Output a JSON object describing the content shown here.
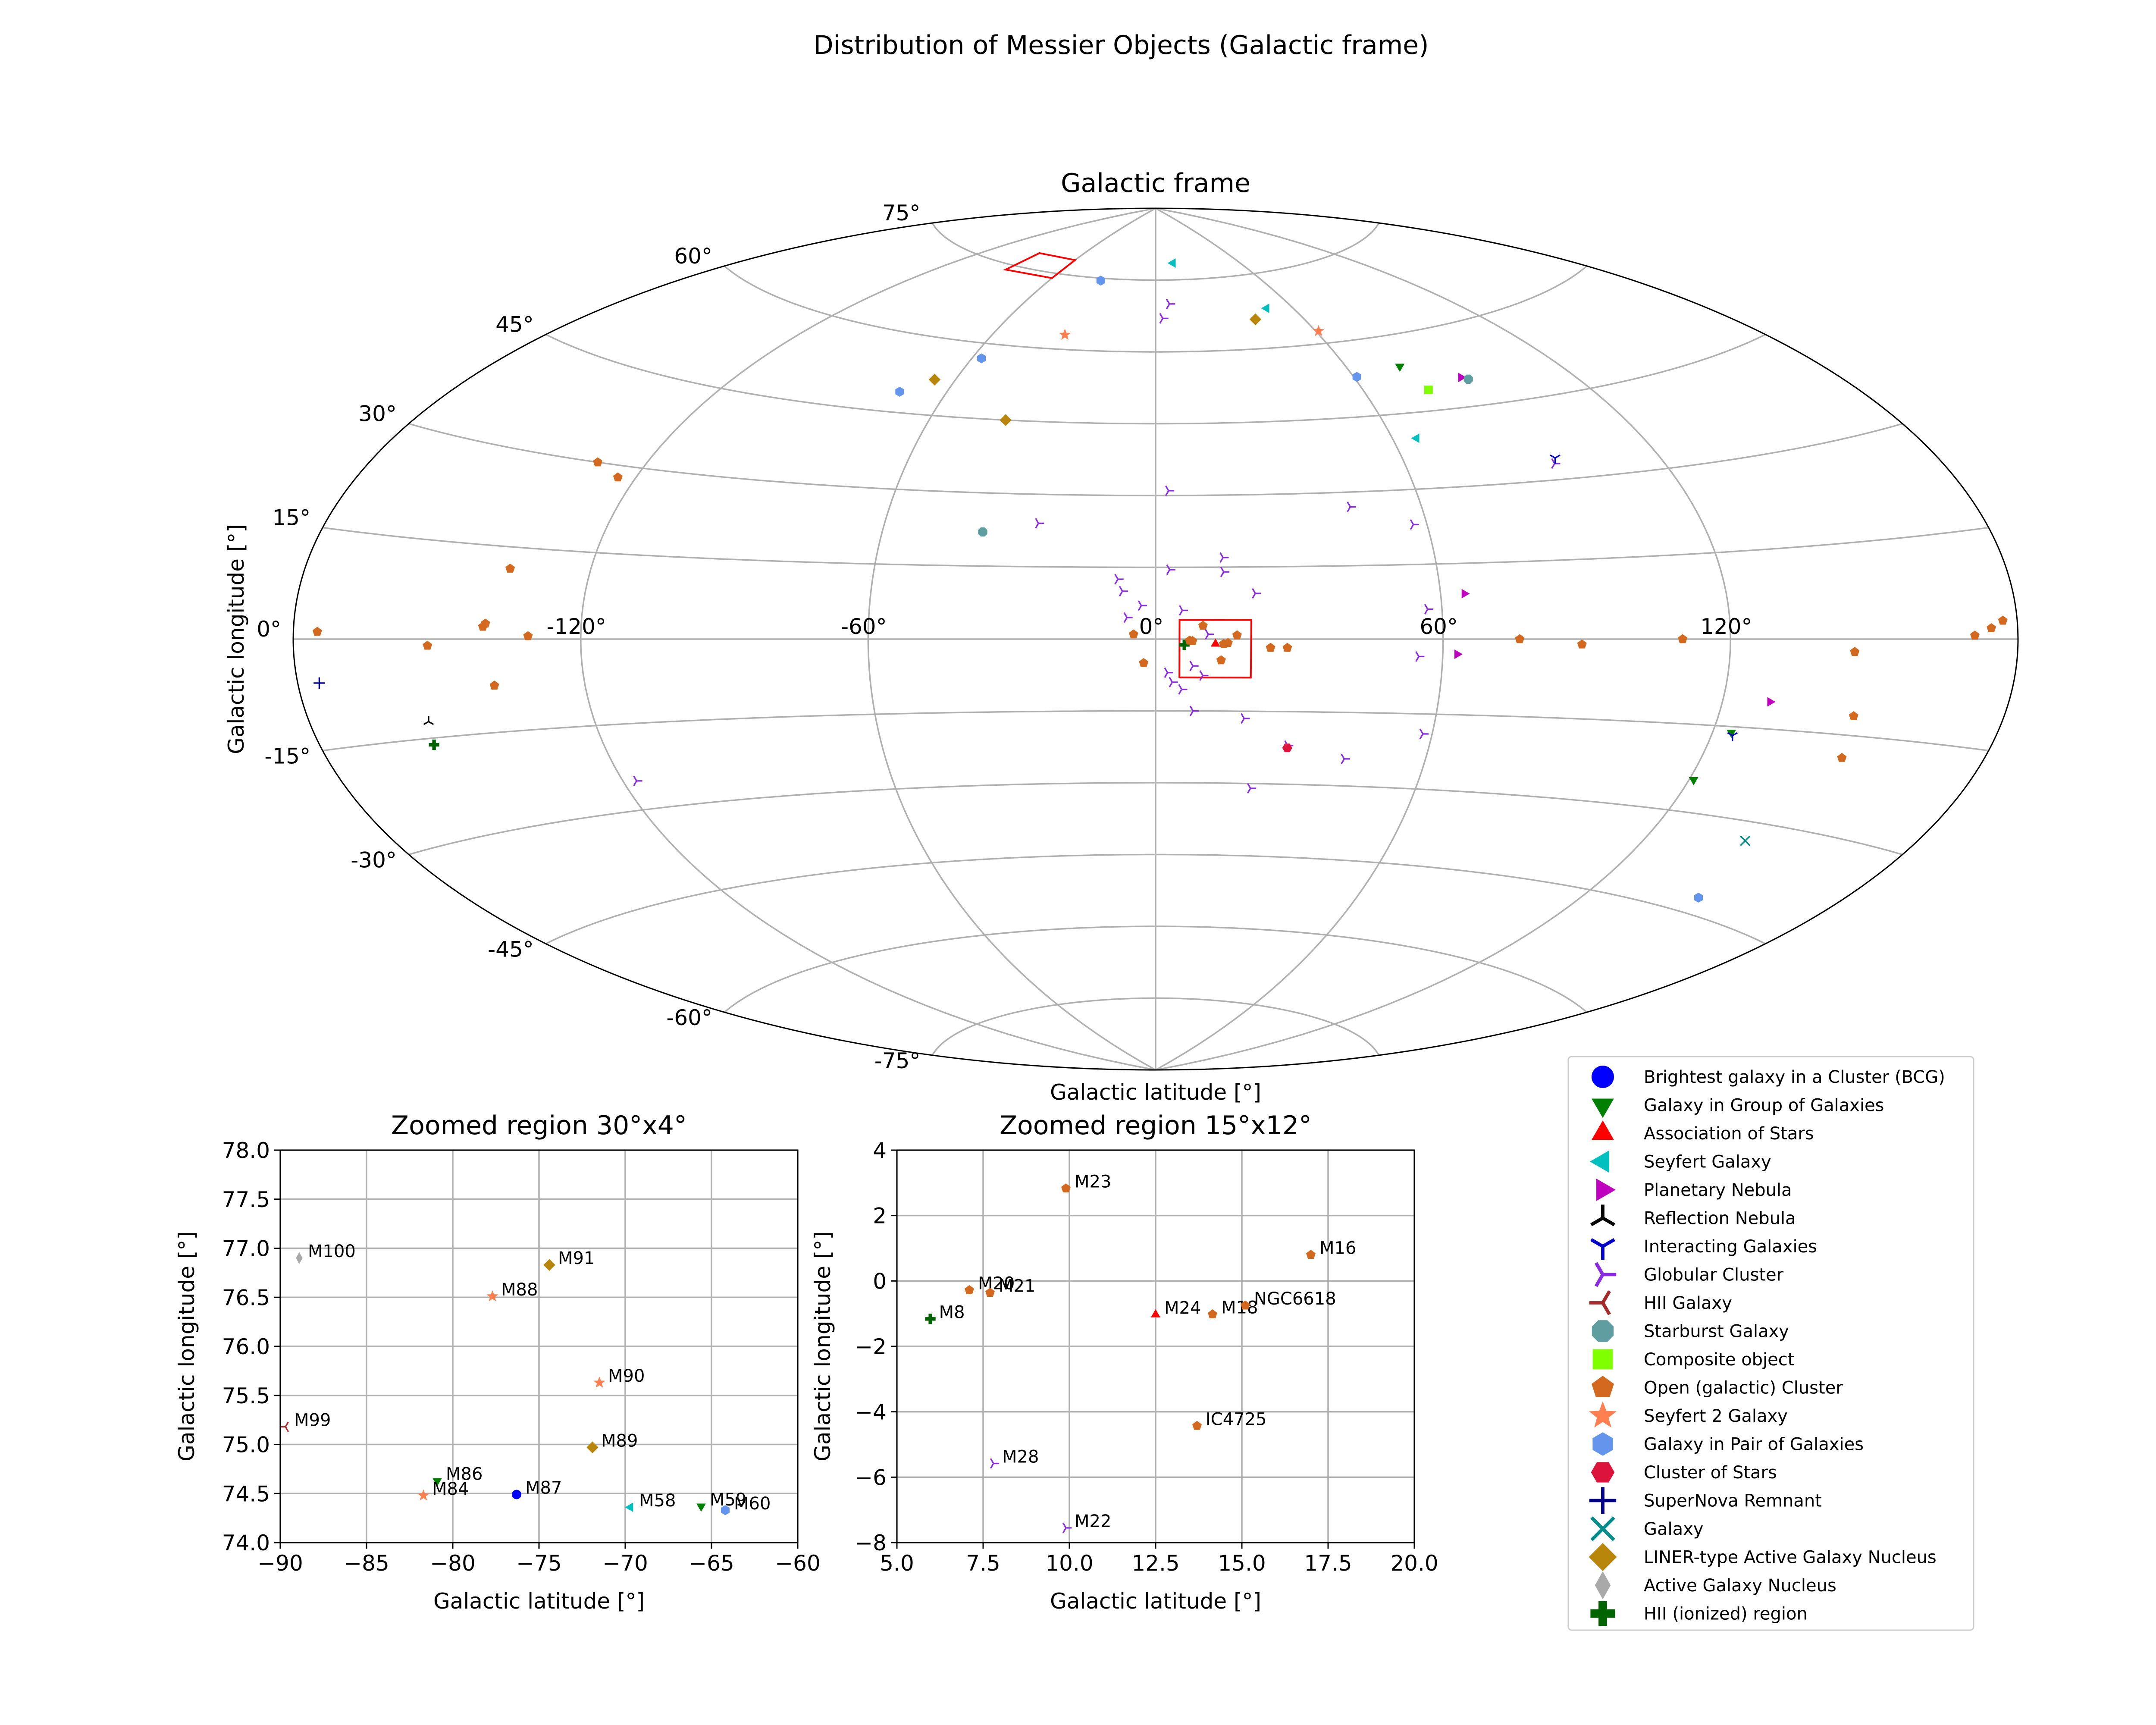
{
  "figure": {
    "title": "Distribution of Messier Objects (Galactic frame)"
  },
  "chart_data": [
    {
      "type": "scatter",
      "projection": "aitoff",
      "title": "Galactic frame",
      "xlabel": "Galactic latitude [°]",
      "ylabel": "Galactic longitude [°]",
      "xlim": [
        -180,
        180
      ],
      "ylim": [
        -90,
        90
      ],
      "grid": true,
      "x_ticks": [
        "-120°",
        "-60°",
        "0°",
        "60°",
        "120°"
      ],
      "x_tick_values": [
        -120,
        -60,
        0,
        60,
        120
      ],
      "y_ticks": [
        "-75°",
        "-60°",
        "-45°",
        "-30°",
        "-15°",
        "0°",
        "15°",
        "30°",
        "45°",
        "60°",
        "75°"
      ],
      "y_tick_values": [
        -75,
        -60,
        -45,
        -30,
        -15,
        0,
        15,
        30,
        45,
        60,
        75
      ],
      "zoom_boxes": [
        {
          "lon": [
            -90,
            -60
          ],
          "lat": [
            74,
            78
          ]
        },
        {
          "lon": [
            5,
            20
          ],
          "lat": [
            -8,
            4
          ]
        }
      ],
      "points": [
        {
          "lon": -4.6,
          "lat": 1.0,
          "type": "Open (galactic) Cluster"
        },
        {
          "lon": -2.5,
          "lat": -5.0,
          "type": "Open (galactic) Cluster"
        },
        {
          "lon": 6.0,
          "lat": -1.2,
          "type": "HII (ionized) region"
        },
        {
          "lon": 7.1,
          "lat": -0.3,
          "type": "Open (galactic) Cluster"
        },
        {
          "lon": 7.7,
          "lat": -0.4,
          "type": "Open (galactic) Cluster"
        },
        {
          "lon": 9.9,
          "lat": 2.8,
          "type": "Open (galactic) Cluster"
        },
        {
          "lon": 12.5,
          "lat": -1.0,
          "type": "Association of Stars"
        },
        {
          "lon": 14.2,
          "lat": -1.0,
          "type": "Open (galactic) Cluster"
        },
        {
          "lon": 15.1,
          "lat": -0.8,
          "type": "Open (galactic) Cluster"
        },
        {
          "lon": 17.0,
          "lat": 0.8,
          "type": "Open (galactic) Cluster"
        },
        {
          "lon": 13.7,
          "lat": -4.4,
          "type": "Open (galactic) Cluster"
        },
        {
          "lon": 7.8,
          "lat": -5.6,
          "type": "Globular Cluster"
        },
        {
          "lon": 9.9,
          "lat": -7.6,
          "type": "Globular Cluster"
        },
        {
          "lon": 24.0,
          "lat": -1.8,
          "type": "Open (galactic) Cluster"
        },
        {
          "lon": 27.5,
          "lat": -1.8,
          "type": "Open (galactic) Cluster"
        },
        {
          "lon": 60.9,
          "lat": 52.9,
          "type": "Galaxy in Pair of Galaxies"
        },
        {
          "lon": 11.0,
          "lat": 1.0,
          "type": "Globular Cluster"
        },
        {
          "lon": 5.6,
          "lat": 6.0,
          "type": "Globular Cluster"
        },
        {
          "lon": -3.0,
          "lat": 7.0,
          "type": "Globular Cluster"
        },
        {
          "lon": -6.0,
          "lat": 4.5,
          "type": "Globular Cluster"
        },
        {
          "lon": -7.0,
          "lat": 10.0,
          "type": "Globular Cluster"
        },
        {
          "lon": -8.0,
          "lat": 12.5,
          "type": "Globular Cluster"
        },
        {
          "lon": 3.0,
          "lat": 14.5,
          "type": "Globular Cluster"
        },
        {
          "lon": 14.5,
          "lat": 14.0,
          "type": "Globular Cluster"
        },
        {
          "lon": 14.5,
          "lat": 17.0,
          "type": "Globular Cluster"
        },
        {
          "lon": 21.0,
          "lat": 9.5,
          "type": "Globular Cluster"
        },
        {
          "lon": 2.5,
          "lat": -7.0,
          "type": "Globular Cluster"
        },
        {
          "lon": 3.5,
          "lat": -9.0,
          "type": "Globular Cluster"
        },
        {
          "lon": 5.5,
          "lat": -10.5,
          "type": "Globular Cluster"
        },
        {
          "lon": 8.0,
          "lat": -15.0,
          "type": "Globular Cluster"
        },
        {
          "lon": 19.0,
          "lat": -16.5,
          "type": "Globular Cluster"
        },
        {
          "lon": 3.0,
          "lat": 31.0,
          "type": "Globular Cluster"
        },
        {
          "lon": -26.0,
          "lat": 24.0,
          "type": "Globular Cluster"
        },
        {
          "lon": 44.0,
          "lat": 27.0,
          "type": "Globular Cluster"
        },
        {
          "lon": 57.0,
          "lat": 23.0,
          "type": "Globular Cluster"
        },
        {
          "lon": 57.0,
          "lat": 6.0,
          "type": "Globular Cluster"
        },
        {
          "lon": 55.0,
          "lat": -3.5,
          "type": "Globular Cluster"
        },
        {
          "lon": 58.0,
          "lat": -19.0,
          "type": "Globular Cluster"
        },
        {
          "lon": 42.0,
          "lat": -24.5,
          "type": "Globular Cluster"
        },
        {
          "lon": 29.0,
          "lat": -22.0,
          "type": "Globular Cluster"
        },
        {
          "lon": 22.0,
          "lat": -31.0,
          "type": "Globular Cluster"
        },
        {
          "lon": -117.0,
          "lat": -25.0,
          "type": "Globular Cluster"
        },
        {
          "lon": 95.0,
          "lat": 33.0,
          "type": "Globular Cluster"
        },
        {
          "lon": 3.0,
          "lat": 67.0,
          "type": "Globular Cluster"
        },
        {
          "lon": 6.5,
          "lat": 70.0,
          "type": "Globular Cluster"
        },
        {
          "lon": 65.0,
          "lat": 9.0,
          "type": "Planetary Nebula"
        },
        {
          "lon": 63.0,
          "lat": -3.0,
          "type": "Planetary Nebula"
        },
        {
          "lon": 130.0,
          "lat": -10.5,
          "type": "Planetary Nebula"
        },
        {
          "lon": 90.0,
          "lat": 50.5,
          "type": "Planetary Nebula"
        },
        {
          "lon": 29.0,
          "lat": -22.5,
          "type": "Cluster of Stars"
        },
        {
          "lon": 13.0,
          "lat": 78.5,
          "type": "Seyfert Galaxy"
        },
        {
          "lon": 49.0,
          "lat": 68.0,
          "type": "Seyfert Galaxy"
        },
        {
          "lon": 66.0,
          "lat": 40.0,
          "type": "Seyfert Galaxy"
        },
        {
          "lon": -38.0,
          "lat": 22.0,
          "type": "Starburst Galaxy"
        },
        {
          "lon": 91.5,
          "lat": 50.0,
          "type": "Starburst Galaxy"
        },
        {
          "lon": 78.0,
          "lat": 49.0,
          "type": "Composite object"
        },
        {
          "lon": 76.0,
          "lat": 54.0,
          "type": "Galaxy in Group of Galaxies"
        },
        {
          "lon": 124.0,
          "lat": -16.0,
          "type": "Galaxy in Group of Galaxies"
        },
        {
          "lon": 121.0,
          "lat": -24.5,
          "type": "Galaxy in Group of Galaxies"
        },
        {
          "lon": 61.0,
          "lat": 62.5,
          "type": "Seyfert 2 Galaxy"
        },
        {
          "lon": -34.0,
          "lat": 63.0,
          "type": "Seyfert 2 Galaxy"
        },
        {
          "lon": 41.0,
          "lat": 66.0,
          "type": "LINER-type Active Galaxy Nucleus"
        },
        {
          "lon": -66.0,
          "lat": 52.0,
          "type": "LINER-type Active Galaxy Nucleus"
        },
        {
          "lon": -40.0,
          "lat": 45.0,
          "type": "LINER-type Active Galaxy Nucleus"
        },
        {
          "lon": -73.0,
          "lat": 49.0,
          "type": "Galaxy in Pair of Galaxies"
        },
        {
          "lon": -57.0,
          "lat": 57.0,
          "type": "Galaxy in Pair of Galaxies"
        },
        {
          "lon": -32.0,
          "lat": 74.5,
          "type": "Galaxy in Pair of Galaxies"
        },
        {
          "lon": 96.0,
          "lat": 34.0,
          "type": "Interacting Galaxies"
        },
        {
          "lon": 124.5,
          "lat": -16.5,
          "type": "Interacting Galaxies"
        },
        {
          "lon": 148.0,
          "lat": -42.5,
          "type": "Galaxy in Pair of Galaxies"
        },
        {
          "lon": 143.0,
          "lat": -33.0,
          "type": "Galaxy"
        },
        {
          "lon": 174.5,
          "lat": 1.5,
          "type": "Open (galactic) Cluster"
        },
        {
          "lon": 177.0,
          "lat": 2.5,
          "type": "Open (galactic) Cluster"
        },
        {
          "lon": 171.0,
          "lat": 0.5,
          "type": "Open (galactic) Cluster"
        },
        {
          "lon": 146.0,
          "lat": -2.0,
          "type": "Open (galactic) Cluster"
        },
        {
          "lon": 148.5,
          "lat": -12.0,
          "type": "Open (galactic) Cluster"
        },
        {
          "lon": 150.0,
          "lat": -18.5,
          "type": "Open (galactic) Cluster"
        },
        {
          "lon": 110.0,
          "lat": 0.0,
          "type": "Open (galactic) Cluster"
        },
        {
          "lon": 89.0,
          "lat": -1.0,
          "type": "Open (galactic) Cluster"
        },
        {
          "lon": 76.0,
          "lat": 0.0,
          "type": "Open (galactic) Cluster"
        },
        {
          "lon": -131.0,
          "lat": 0.5,
          "type": "Open (galactic) Cluster"
        },
        {
          "lon": -140.0,
          "lat": 2.5,
          "type": "Open (galactic) Cluster"
        },
        {
          "lon": -140.5,
          "lat": 2.0,
          "type": "Open (galactic) Cluster"
        },
        {
          "lon": -139.0,
          "lat": -7.5,
          "type": "Open (galactic) Cluster"
        },
        {
          "lon": -152.0,
          "lat": -1.0,
          "type": "Open (galactic) Cluster"
        },
        {
          "lon": -137.0,
          "lat": 11.5,
          "type": "Open (galactic) Cluster"
        },
        {
          "lon": -124.0,
          "lat": 28.0,
          "type": "Open (galactic) Cluster"
        },
        {
          "lon": -131.0,
          "lat": 30.0,
          "type": "Open (galactic) Cluster"
        },
        {
          "lon": -175.0,
          "lat": 1.0,
          "type": "Open (galactic) Cluster"
        },
        {
          "lon": -175.5,
          "lat": -6.0,
          "type": "SuperNova Remnant"
        },
        {
          "lon": -156.0,
          "lat": -16.0,
          "type": "HII (ionized) region"
        },
        {
          "lon": -155.0,
          "lat": -12.5,
          "type": "Reflection Nebula"
        }
      ]
    },
    {
      "type": "scatter",
      "title": "Zoomed region 30°x4°",
      "xlabel": "Galactic latitude [°]",
      "ylabel": "Galactic longitude [°]",
      "xlim": [
        -90,
        -60
      ],
      "ylim": [
        74.0,
        78.0
      ],
      "grid": true,
      "x_ticks": [
        "−90",
        "−85",
        "−80",
        "−75",
        "−70",
        "−65",
        "−60"
      ],
      "x_tick_values": [
        -90,
        -85,
        -80,
        -75,
        -70,
        -65,
        -60
      ],
      "y_ticks": [
        "74.0",
        "74.5",
        "75.0",
        "75.5",
        "76.0",
        "76.5",
        "77.0",
        "77.5",
        "78.0"
      ],
      "y_tick_values": [
        74.0,
        74.5,
        75.0,
        75.5,
        76.0,
        76.5,
        77.0,
        77.5,
        78.0
      ],
      "points": [
        {
          "x": -88.9,
          "y": 76.9,
          "label": "M100",
          "type": "Active Galaxy Nucleus"
        },
        {
          "x": -74.4,
          "y": 76.83,
          "label": "M91",
          "type": "LINER-type Active Galaxy Nucleus"
        },
        {
          "x": -77.7,
          "y": 76.51,
          "label": "M88",
          "type": "Seyfert 2 Galaxy"
        },
        {
          "x": -71.5,
          "y": 75.63,
          "label": "M90",
          "type": "Seyfert 2 Galaxy"
        },
        {
          "x": -89.7,
          "y": 75.18,
          "label": "M99",
          "type": "HII Galaxy"
        },
        {
          "x": -71.9,
          "y": 74.97,
          "label": "M89",
          "type": "LINER-type Active Galaxy Nucleus"
        },
        {
          "x": -80.9,
          "y": 74.63,
          "label": "M86",
          "type": "Galaxy in Group of Galaxies"
        },
        {
          "x": -81.7,
          "y": 74.48,
          "label": "M84",
          "type": "Seyfert 2 Galaxy"
        },
        {
          "x": -76.3,
          "y": 74.49,
          "label": "M87",
          "type": "Brightest galaxy in a Cluster (BCG)"
        },
        {
          "x": -69.7,
          "y": 74.36,
          "label": "M58",
          "type": "Seyfert Galaxy"
        },
        {
          "x": -65.6,
          "y": 74.37,
          "label": "M59",
          "type": "Galaxy in Group of Galaxies"
        },
        {
          "x": -64.2,
          "y": 74.33,
          "label": "M60",
          "type": "Galaxy in Pair of Galaxies"
        }
      ]
    },
    {
      "type": "scatter",
      "title": "Zoomed region 15°x12°",
      "xlabel": "Galactic latitude [°]",
      "ylabel": "Galactic longitude [°]",
      "xlim": [
        5.0,
        20.0
      ],
      "ylim": [
        -8,
        4
      ],
      "grid": true,
      "x_ticks": [
        "5.0",
        "7.5",
        "10.0",
        "12.5",
        "15.0",
        "17.5",
        "20.0"
      ],
      "x_tick_values": [
        5.0,
        7.5,
        10.0,
        12.5,
        15.0,
        17.5,
        20.0
      ],
      "y_ticks": [
        "−8",
        "−6",
        "−4",
        "−2",
        "0",
        "2",
        "4"
      ],
      "y_tick_values": [
        -8,
        -6,
        -4,
        -2,
        0,
        2,
        4
      ],
      "points": [
        {
          "x": 9.9,
          "y": 2.83,
          "label": "M23",
          "type": "Open (galactic) Cluster"
        },
        {
          "x": 17.0,
          "y": 0.8,
          "label": "M16",
          "type": "Open (galactic) Cluster"
        },
        {
          "x": 7.1,
          "y": -0.28,
          "label": "M20",
          "type": "Open (galactic) Cluster"
        },
        {
          "x": 7.7,
          "y": -0.36,
          "label": "M21",
          "type": "Open (galactic) Cluster"
        },
        {
          "x": 5.97,
          "y": -1.16,
          "label": "M8",
          "type": "HII (ionized) region"
        },
        {
          "x": 12.5,
          "y": -1.03,
          "label": "M24",
          "type": "Association of Stars"
        },
        {
          "x": 14.15,
          "y": -1.02,
          "label": "M18",
          "type": "Open (galactic) Cluster"
        },
        {
          "x": 15.1,
          "y": -0.75,
          "label": "NGC6618",
          "type": "Open (galactic) Cluster"
        },
        {
          "x": 13.7,
          "y": -4.43,
          "label": "IC4725",
          "type": "Open (galactic) Cluster"
        },
        {
          "x": 7.8,
          "y": -5.58,
          "label": "M28",
          "type": "Globular Cluster"
        },
        {
          "x": 9.9,
          "y": -7.55,
          "label": "M22",
          "type": "Globular Cluster"
        }
      ]
    }
  ],
  "legend": {
    "placement": "lower-right",
    "entries": [
      {
        "label": "Brightest galaxy in a Cluster (BCG)",
        "marker": "circle",
        "color": "#0000ff"
      },
      {
        "label": "Galaxy in Group of Galaxies",
        "marker": "triangle-down",
        "color": "#008000"
      },
      {
        "label": "Association of Stars",
        "marker": "triangle-up",
        "color": "#ff0000"
      },
      {
        "label": "Seyfert Galaxy",
        "marker": "triangle-left",
        "color": "#00bfbf"
      },
      {
        "label": "Planetary Nebula",
        "marker": "triangle-right",
        "color": "#bf00bf"
      },
      {
        "label": "Reflection Nebula",
        "marker": "tri-down",
        "color": "#000000"
      },
      {
        "label": "Interacting Galaxies",
        "marker": "tri-up",
        "color": "#0000cd"
      },
      {
        "label": "Globular Cluster",
        "marker": "tri-left",
        "color": "#8a2be2"
      },
      {
        "label": "HII Galaxy",
        "marker": "tri-right",
        "color": "#a52a2a"
      },
      {
        "label": "Starburst Galaxy",
        "marker": "octagon",
        "color": "#5f9ea0"
      },
      {
        "label": "Composite object",
        "marker": "square",
        "color": "#7fff00"
      },
      {
        "label": "Open (galactic) Cluster",
        "marker": "pentagon",
        "color": "#d2691e"
      },
      {
        "label": "Seyfert 2 Galaxy",
        "marker": "star",
        "color": "#ff7f50"
      },
      {
        "label": "Galaxy in Pair of Galaxies",
        "marker": "hexagon",
        "color": "#6495ed"
      },
      {
        "label": "Cluster of Stars",
        "marker": "hexagon2",
        "color": "#dc143c"
      },
      {
        "label": "SuperNova Remnant",
        "marker": "plus",
        "color": "#00008b"
      },
      {
        "label": "Galaxy",
        "marker": "x",
        "color": "#008b8b"
      },
      {
        "label": "LINER-type Active Galaxy Nucleus",
        "marker": "diamond",
        "color": "#b8860b"
      },
      {
        "label": "Active Galaxy Nucleus",
        "marker": "thin-diamond",
        "color": "#a9a9a9"
      },
      {
        "label": "HII (ionized) region",
        "marker": "plus-filled",
        "color": "#006400"
      }
    ]
  }
}
